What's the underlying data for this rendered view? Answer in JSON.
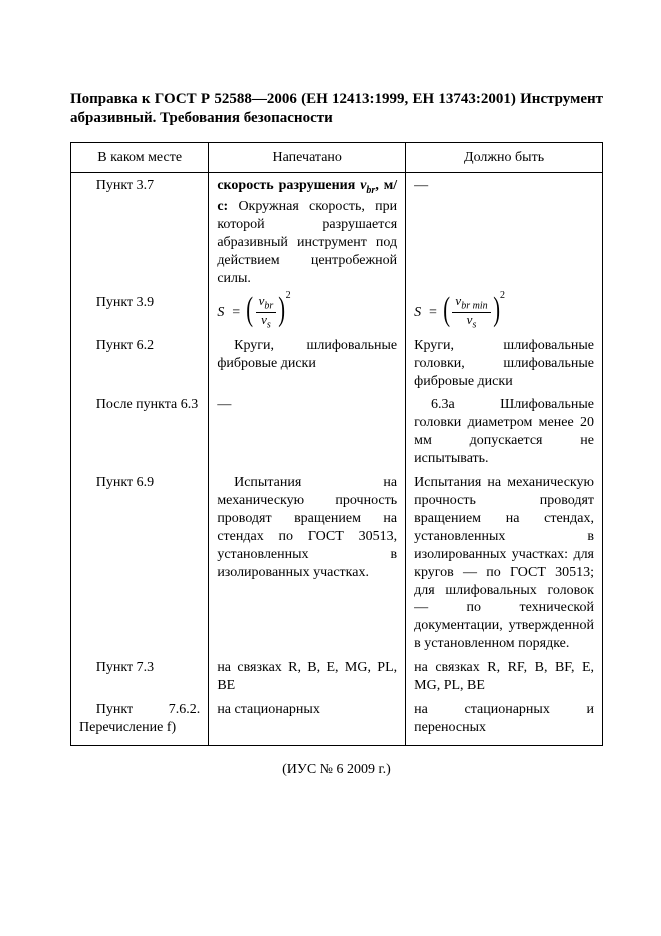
{
  "title_prefix_bold": "Поправка к ГОСТ Р 52588—2006 (ЕН 12413:1999, ЕН 13743:2001) Инструмент абразивный. Требования безопасности",
  "headers": {
    "c1": "В каком месте",
    "c2": "Напечатано",
    "c3": "Должно быть"
  },
  "rows": {
    "r1": {
      "where": "Пункт 3.7",
      "printed_lead_bold": "скорость разрушения ",
      "printed_sym": "v",
      "printed_sym_sub": "br",
      "printed_unit_bold": ", м/с:",
      "printed_rest": " Окружная скорость, при которой разрушается абразивный инструмент под действием центробежной силы.",
      "correct": "—"
    },
    "r2": {
      "where": "Пункт 3.9",
      "eq_letter": "S",
      "eq_num_printed": "v",
      "eq_num_printed_sub": "br",
      "eq_den": "v",
      "eq_den_sub": "s",
      "eq_num_correct": "v",
      "eq_num_correct_sub": "br min",
      "exp": "2"
    },
    "r3": {
      "where": "Пункт 6.2",
      "printed": "Круги, шлифовальные фибровые диски",
      "correct": "Круги, шлифовальные головки, шлифовальные фибровые диски"
    },
    "r4": {
      "where": "После пункта 6.3",
      "printed": "—",
      "correct": "6.3а Шлифовальные головки диаметром менее 20 мм допускается не испытывать."
    },
    "r5": {
      "where": "Пункт 6.9",
      "printed": "Испытания на механическую прочность проводят вращением на стендах по ГОСТ 30513, установленных в изолированных участках.",
      "correct": "Испытания на механическую прочность проводят вращением на стендах, установленных в изолированных участках: для кругов — по ГОСТ 30513; для шлифовальных головок — по технической документации, утвержденной в установленном порядке."
    },
    "r6": {
      "where": "Пункт 7.3",
      "printed": "на связках R, B, E, MG, PL, BE",
      "correct": "на связках R, RF, B, BF, E, MG, PL, BE"
    },
    "r7": {
      "where": "Пункт 7.6.2. Перечисление f)",
      "printed": "на стационарных",
      "correct": "на стационарных и переносных"
    }
  },
  "footer": "(ИУС № 6  2009 г.)",
  "dash": "—"
}
